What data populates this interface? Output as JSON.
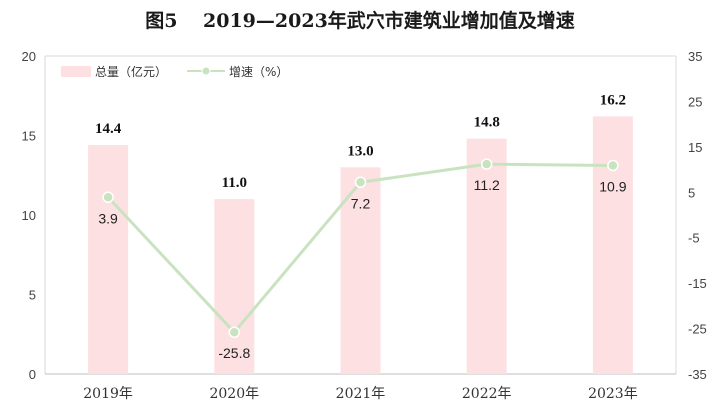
{
  "chart_data": {
    "type": "bar+line",
    "title": "图5　 2019—2023年武穴市建筑业增加值及增速",
    "categories": [
      "2019年",
      "2020年",
      "2021年",
      "2022年",
      "2023年"
    ],
    "series": [
      {
        "name": "总量（亿元）",
        "type": "bar",
        "axis": "left",
        "values": [
          14.4,
          11.0,
          13.0,
          14.8,
          16.2
        ],
        "labels": [
          "14.4",
          "11.0",
          "13.0",
          "14.8",
          "16.2"
        ],
        "color": "#fde0e2"
      },
      {
        "name": "增速（%）",
        "type": "line",
        "axis": "right",
        "values": [
          3.9,
          -25.8,
          7.2,
          11.2,
          10.9
        ],
        "labels": [
          "3.9",
          "-25.8",
          "7.2",
          "11.2",
          "10.9"
        ],
        "color": "#c9e3c1"
      }
    ],
    "y_left": {
      "min": 0,
      "max": 20,
      "ticks": [
        "0",
        "5",
        "10",
        "15",
        "20"
      ]
    },
    "y_right": {
      "min": -35,
      "max": 35,
      "ticks": [
        "-35",
        "-25",
        "-15",
        "-5",
        "5",
        "15",
        "25",
        "35"
      ]
    },
    "legend": {
      "position": "top-left"
    },
    "grid": false
  }
}
